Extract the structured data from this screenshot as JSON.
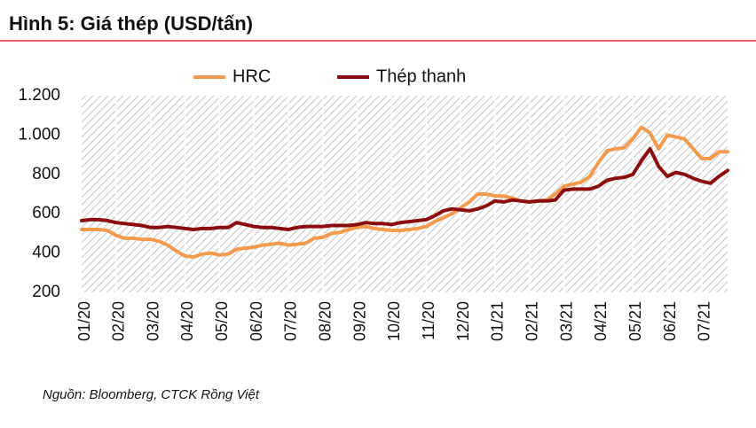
{
  "chart_data": {
    "type": "line",
    "title": "Hình 5: Giá thép (USD/tấn)",
    "source": "Nguồn: Bloomberg, CTCK Rồng Việt",
    "categories": [
      "01/20",
      null,
      null,
      null,
      "02/20",
      null,
      null,
      null,
      "03/20",
      null,
      null,
      null,
      "04/20",
      null,
      null,
      null,
      "05/20",
      null,
      null,
      null,
      "06/20",
      null,
      null,
      null,
      "07/20",
      null,
      null,
      null,
      "08/20",
      null,
      null,
      null,
      "09/20",
      null,
      null,
      null,
      "10/20",
      null,
      null,
      null,
      "11/20",
      null,
      null,
      null,
      "12/20",
      null,
      null,
      null,
      "01/21",
      null,
      null,
      null,
      "02/21",
      null,
      null,
      null,
      "03/21",
      null,
      null,
      null,
      "04/21",
      null,
      null,
      null,
      "05/21",
      null,
      null,
      null,
      "06/21",
      null,
      null,
      null,
      "07/21",
      null,
      null,
      null
    ],
    "series": [
      {
        "name": "HRC",
        "color": "#f39a4f",
        "values": [
          520,
          520,
          520,
          515,
          490,
          475,
          475,
          470,
          470,
          460,
          440,
          410,
          385,
          380,
          395,
          400,
          390,
          395,
          420,
          425,
          430,
          440,
          445,
          450,
          440,
          445,
          450,
          475,
          480,
          500,
          505,
          520,
          530,
          535,
          525,
          520,
          515,
          515,
          520,
          525,
          535,
          560,
          580,
          600,
          630,
          660,
          700,
          700,
          690,
          690,
          680,
          665,
          660,
          665,
          670,
          700,
          740,
          750,
          760,
          790,
          860,
          920,
          930,
          935,
          980,
          1040,
          1010,
          930,
          1000,
          990,
          980,
          930,
          880,
          880,
          915,
          915
        ]
      },
      {
        "name": "Thép thanh",
        "color": "#8b0d0d",
        "values": [
          565,
          570,
          570,
          565,
          555,
          550,
          545,
          540,
          530,
          530,
          535,
          530,
          525,
          520,
          525,
          525,
          530,
          530,
          555,
          545,
          535,
          530,
          530,
          525,
          520,
          530,
          535,
          535,
          535,
          540,
          540,
          540,
          545,
          555,
          550,
          550,
          545,
          555,
          560,
          565,
          570,
          590,
          615,
          625,
          620,
          615,
          625,
          640,
          665,
          660,
          670,
          665,
          660,
          665,
          665,
          670,
          720,
          725,
          725,
          725,
          740,
          770,
          780,
          785,
          800,
          870,
          930,
          840,
          790,
          810,
          800,
          780,
          765,
          755,
          790,
          820
        ]
      }
    ],
    "ylim": [
      200,
      1200
    ],
    "yticks": [
      200,
      400,
      600,
      800,
      {
        "value": 1000,
        "label": "1.000"
      },
      {
        "value": 1200,
        "label": "1.200"
      }
    ],
    "grid": false,
    "legend": "top"
  }
}
